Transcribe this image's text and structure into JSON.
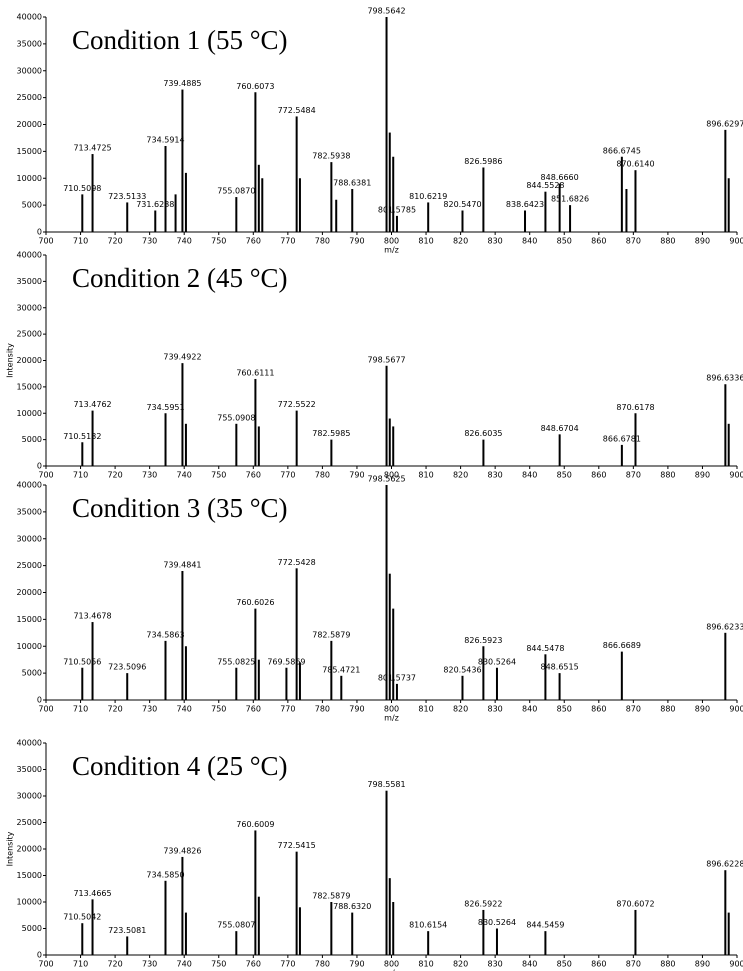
{
  "chart_data": [
    {
      "type": "bar",
      "title": "Condition 1 (55 °C)",
      "x_label": "m/z",
      "color": "#000000",
      "xlim": [
        700,
        900
      ],
      "xticks": [
        700,
        710,
        720,
        730,
        740,
        750,
        760,
        770,
        780,
        790,
        800,
        810,
        820,
        830,
        840,
        850,
        860,
        870,
        880,
        890,
        900
      ],
      "ylim": [
        0,
        40000
      ],
      "yticks": [
        0,
        5000,
        10000,
        15000,
        20000,
        25000,
        30000,
        35000,
        40000
      ],
      "x": [
        710.5098,
        713.4725,
        723.5133,
        731.6288,
        734.5914,
        737.5,
        739.4885,
        740.5,
        755.087,
        760.6073,
        761.6,
        762.6,
        772.5484,
        773.5,
        782.5938,
        784.0,
        788.6381,
        798.5642,
        799.5,
        800.5,
        801.5785,
        810.6219,
        820.547,
        826.5986,
        838.6423,
        844.5528,
        848.666,
        851.6826,
        866.6745,
        868.0,
        870.614,
        896.6297,
        897.6
      ],
      "values": [
        7000,
        14500,
        5500,
        4000,
        16000,
        7000,
        26500,
        11000,
        6500,
        26000,
        12500,
        10000,
        21500,
        10000,
        13000,
        6000,
        8000,
        40000,
        18500,
        14000,
        3000,
        5500,
        4000,
        12000,
        4000,
        7500,
        9000,
        5000,
        14000,
        8000,
        11500,
        19000,
        10000
      ],
      "labels": [
        "710.5098",
        "713.4725",
        "723.5133",
        "731.6288",
        "734.5914",
        null,
        "739.4885",
        null,
        "755.0870",
        "760.6073",
        null,
        null,
        "772.5484",
        null,
        "782.5938",
        null,
        "788.6381",
        "798.5642",
        null,
        null,
        "801.5785",
        "810.6219",
        "820.5470",
        "826.5986",
        "838.6423",
        "844.5528",
        "848.6660",
        "851.6826",
        "866.6745",
        null,
        "870.6140",
        "896.6297",
        null
      ]
    },
    {
      "type": "bar",
      "title": "Condition 2 (45 °C)",
      "y_label": "Intensity",
      "color": "#000000",
      "xlim": [
        700,
        900
      ],
      "xticks": [
        700,
        710,
        720,
        730,
        740,
        750,
        760,
        770,
        780,
        790,
        800,
        810,
        820,
        830,
        840,
        850,
        860,
        870,
        880,
        890,
        900
      ],
      "ylim": [
        0,
        40000
      ],
      "yticks": [
        0,
        5000,
        10000,
        15000,
        20000,
        25000,
        30000,
        35000,
        40000
      ],
      "x": [
        710.5132,
        713.4762,
        734.5951,
        739.4922,
        740.5,
        755.0908,
        760.6111,
        761.6,
        772.5522,
        782.5985,
        798.5677,
        799.5,
        800.5,
        826.6035,
        848.6704,
        866.6781,
        870.6178,
        896.6336,
        897.6
      ],
      "values": [
        4500,
        10500,
        10000,
        19500,
        8000,
        8000,
        16500,
        7500,
        10500,
        5000,
        19000,
        9000,
        7500,
        5000,
        6000,
        4000,
        10000,
        15500,
        8000
      ],
      "labels": [
        "710.5132",
        "713.4762",
        "734.5951",
        "739.4922",
        null,
        "755.0908",
        "760.6111",
        null,
        "772.5522",
        "782.5985",
        "798.5677",
        null,
        null,
        "826.6035",
        "848.6704",
        "866.6781",
        "870.6178",
        "896.6336",
        null
      ]
    },
    {
      "type": "bar",
      "title": "Condition 3 (35 °C)",
      "x_label": "m/z",
      "color": "#000000",
      "xlim": [
        700,
        900
      ],
      "xticks": [
        700,
        710,
        720,
        730,
        740,
        750,
        760,
        770,
        780,
        790,
        800,
        810,
        820,
        830,
        840,
        850,
        860,
        870,
        880,
        890,
        900
      ],
      "ylim": [
        0,
        40000
      ],
      "yticks": [
        0,
        5000,
        10000,
        15000,
        20000,
        25000,
        30000,
        35000,
        40000
      ],
      "x": [
        710.5056,
        713.4678,
        723.5096,
        734.5863,
        739.4841,
        740.5,
        755.0825,
        760.6026,
        761.6,
        769.5869,
        772.5428,
        773.5,
        782.5879,
        785.4721,
        798.5625,
        799.5,
        800.5,
        801.5737,
        820.5436,
        826.5923,
        830.5264,
        844.5478,
        848.6515,
        866.6689,
        896.6233
      ],
      "values": [
        6000,
        14500,
        5000,
        11000,
        24000,
        10000,
        6000,
        17000,
        7500,
        6000,
        24500,
        7000,
        11000,
        4500,
        40000,
        23500,
        17000,
        3000,
        4500,
        10000,
        6000,
        8500,
        5000,
        9000,
        12500
      ],
      "labels": [
        "710.5056",
        "713.4678",
        "723.5096",
        "734.5863",
        "739.4841",
        null,
        "755.0825",
        "760.6026",
        null,
        "769.5869",
        "772.5428",
        null,
        "782.5879",
        "785.4721",
        "798.5625",
        null,
        null,
        "801.5737",
        "820.5436",
        "826.5923",
        "830.5264",
        "844.5478",
        "848.6515",
        "866.6689",
        "896.6233"
      ]
    },
    {
      "type": "bar",
      "title": "Condition 4 (25 °C)",
      "x_label": "m/z",
      "y_label": "Intensity",
      "color": "#000000",
      "xlim": [
        700,
        900
      ],
      "xticks": [
        700,
        710,
        720,
        730,
        740,
        750,
        760,
        770,
        780,
        790,
        800,
        810,
        820,
        830,
        840,
        850,
        860,
        870,
        880,
        890,
        900
      ],
      "ylim": [
        0,
        40000
      ],
      "yticks": [
        0,
        5000,
        10000,
        15000,
        20000,
        25000,
        30000,
        35000,
        40000
      ],
      "x": [
        710.5042,
        713.4665,
        723.5081,
        734.585,
        739.4826,
        740.5,
        755.0807,
        760.6009,
        761.6,
        772.5415,
        773.5,
        782.5879,
        788.632,
        798.5581,
        799.5,
        800.5,
        810.6154,
        826.5922,
        830.5264,
        844.5459,
        870.6072,
        896.6228,
        897.6
      ],
      "values": [
        6000,
        10500,
        3500,
        14000,
        18500,
        8000,
        4500,
        23500,
        11000,
        19500,
        9000,
        10000,
        8000,
        31000,
        14500,
        10000,
        4500,
        8500,
        5000,
        4500,
        8500,
        16000,
        8000
      ],
      "labels": [
        "710.5042",
        "713.4665",
        "723.5081",
        "734.5850",
        "739.4826",
        null,
        "755.0807",
        "760.6009",
        null,
        "772.5415",
        null,
        "782.5879",
        "788.6320",
        "798.5581",
        null,
        null,
        "810.6154",
        "826.5922",
        "830.5264",
        "844.5459",
        "870.6072",
        "896.6228",
        null
      ]
    }
  ]
}
